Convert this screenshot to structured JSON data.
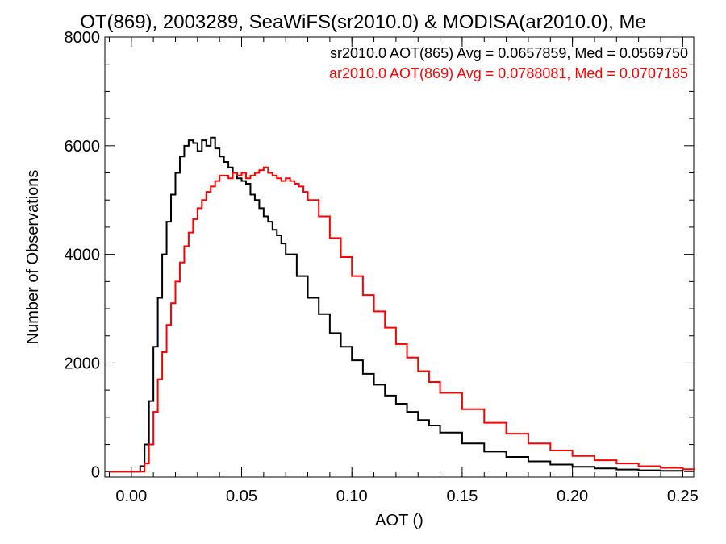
{
  "chart_data": {
    "type": "line",
    "title": "OT(869), 2003289, SeaWiFS(sr2010.0) & MODISA(ar2010.0), Me",
    "xlabel": "AOT ()",
    "ylabel": "Number of Observations",
    "xlim": [
      -0.012,
      0.255
    ],
    "ylim": [
      -100,
      8000
    ],
    "xticks": [
      0.0,
      0.05,
      0.1,
      0.15,
      0.2,
      0.25
    ],
    "xtick_labels": [
      "0.00",
      "0.05",
      "0.10",
      "0.15",
      "0.20",
      "0.25"
    ],
    "yticks": [
      0,
      2000,
      4000,
      6000,
      8000
    ],
    "ytick_labels": [
      "0",
      "2000",
      "4000",
      "6000",
      "8000"
    ],
    "grid": false,
    "legend_position": "top-right",
    "series": [
      {
        "name": "sr2010.0 AOT(865) Avg = 0.0657859, Med = 0.0569750",
        "color": "#000000",
        "x": [
          -0.01,
          0.0,
          0.002,
          0.004,
          0.006,
          0.008,
          0.01,
          0.012,
          0.014,
          0.016,
          0.018,
          0.02,
          0.022,
          0.024,
          0.026,
          0.028,
          0.03,
          0.032,
          0.034,
          0.036,
          0.038,
          0.04,
          0.042,
          0.044,
          0.046,
          0.048,
          0.05,
          0.052,
          0.054,
          0.056,
          0.058,
          0.06,
          0.062,
          0.064,
          0.066,
          0.068,
          0.07,
          0.075,
          0.08,
          0.085,
          0.09,
          0.095,
          0.1,
          0.105,
          0.11,
          0.115,
          0.12,
          0.125,
          0.13,
          0.135,
          0.14,
          0.15,
          0.16,
          0.17,
          0.18,
          0.19,
          0.2,
          0.21,
          0.22,
          0.23,
          0.24,
          0.25
        ],
        "y": [
          0,
          0,
          0,
          100,
          500,
          1300,
          2300,
          3200,
          4000,
          4600,
          5100,
          5500,
          5800,
          6000,
          6100,
          6050,
          5900,
          6100,
          6000,
          6150,
          5950,
          5800,
          5700,
          5600,
          5500,
          5400,
          5350,
          5300,
          5100,
          5000,
          4850,
          4700,
          4600,
          4450,
          4350,
          4200,
          4000,
          3600,
          3200,
          2900,
          2550,
          2300,
          2050,
          1800,
          1600,
          1400,
          1250,
          1100,
          950,
          850,
          720,
          520,
          370,
          270,
          190,
          130,
          90,
          60,
          40,
          25,
          15,
          10
        ]
      },
      {
        "name": "ar2010.0 AOT(869) Avg = 0.0788081, Med = 0.0707185",
        "color": "#ff0000",
        "x": [
          -0.01,
          0.0,
          0.004,
          0.006,
          0.008,
          0.01,
          0.012,
          0.014,
          0.016,
          0.018,
          0.02,
          0.022,
          0.024,
          0.026,
          0.028,
          0.03,
          0.032,
          0.034,
          0.036,
          0.038,
          0.04,
          0.042,
          0.044,
          0.046,
          0.048,
          0.05,
          0.052,
          0.054,
          0.056,
          0.058,
          0.06,
          0.062,
          0.064,
          0.066,
          0.068,
          0.07,
          0.072,
          0.074,
          0.076,
          0.078,
          0.08,
          0.085,
          0.09,
          0.095,
          0.1,
          0.105,
          0.11,
          0.115,
          0.12,
          0.125,
          0.13,
          0.135,
          0.14,
          0.15,
          0.16,
          0.17,
          0.18,
          0.19,
          0.2,
          0.21,
          0.22,
          0.23,
          0.24,
          0.25,
          0.255
        ],
        "y": [
          0,
          0,
          0,
          150,
          500,
          1100,
          1700,
          2200,
          2700,
          3100,
          3500,
          3850,
          4150,
          4400,
          4650,
          4850,
          5000,
          5150,
          5250,
          5350,
          5450,
          5450,
          5400,
          5500,
          5450,
          5500,
          5400,
          5450,
          5500,
          5550,
          5600,
          5500,
          5450,
          5400,
          5350,
          5400,
          5350,
          5300,
          5250,
          5150,
          5000,
          4700,
          4300,
          3950,
          3600,
          3250,
          2950,
          2650,
          2350,
          2100,
          1850,
          1650,
          1450,
          1150,
          900,
          700,
          520,
          390,
          290,
          210,
          150,
          100,
          70,
          45,
          30
        ]
      }
    ]
  }
}
